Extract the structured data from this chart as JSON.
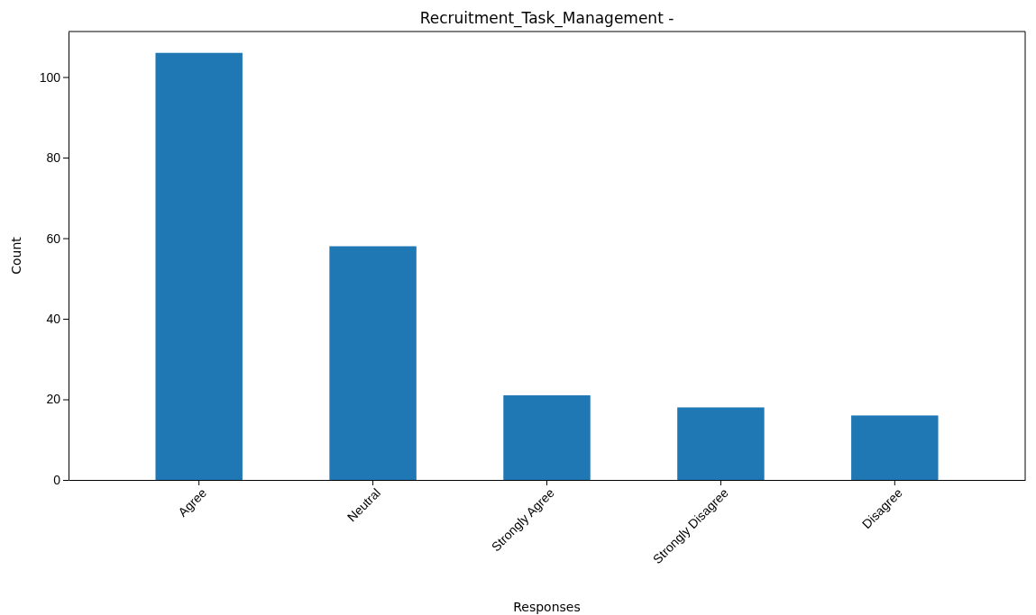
{
  "chart_data": {
    "type": "bar",
    "title": "Recruitment_Task_Management -",
    "xlabel": "Responses",
    "ylabel": "Count",
    "categories": [
      "Agree",
      "Neutral",
      "Strongly Agree",
      "Strongly Disagree",
      "Disagree"
    ],
    "values": [
      106,
      58,
      21,
      18,
      16
    ],
    "color": "#1f77b4",
    "ylim": [
      0,
      111.3
    ],
    "yticks": [
      0,
      20,
      40,
      60,
      80,
      100
    ],
    "grid": false
  }
}
